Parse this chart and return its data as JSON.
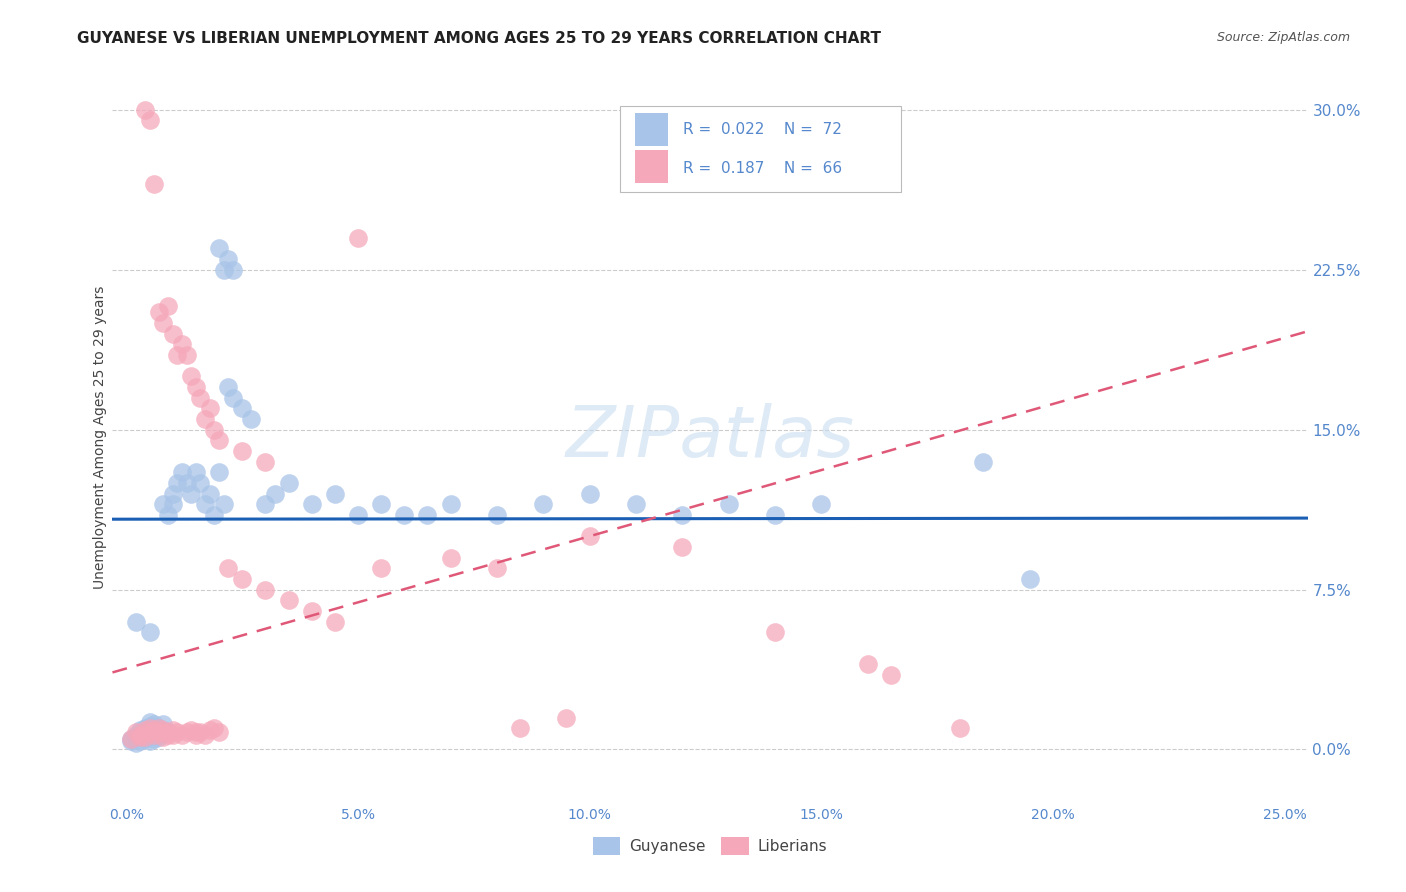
{
  "title": "GUYANESE VS LIBERIAN UNEMPLOYMENT AMONG AGES 25 TO 29 YEARS CORRELATION CHART",
  "source": "Source: ZipAtlas.com",
  "ylabel": "Unemployment Among Ages 25 to 29 years",
  "xlim": [
    -0.003,
    0.255
  ],
  "ylim": [
    -0.025,
    0.318
  ],
  "xtick_vals": [
    0.0,
    0.05,
    0.1,
    0.15,
    0.2,
    0.25
  ],
  "xtick_labels": [
    "0.0%",
    "5.0%",
    "10.0%",
    "15.0%",
    "20.0%",
    "25.0%"
  ],
  "ytick_vals": [
    0.0,
    0.075,
    0.15,
    0.225,
    0.3
  ],
  "ytick_labels": [
    "0.0%",
    "7.5%",
    "15.0%",
    "22.5%",
    "30.0%"
  ],
  "guyanese_color": "#a8c4e8",
  "liberian_color": "#f5a8ba",
  "guyanese_line_color": "#1a5fb4",
  "liberian_line_color": "#e05878",
  "tick_color": "#5588cc",
  "background_color": "#ffffff",
  "grid_color": "#cccccc",
  "watermark_color": "#c8ddf0",
  "guyanese_line_y_intercept": 0.108,
  "guyanese_line_slope": 0.002,
  "liberian_line_y_intercept": 0.038,
  "liberian_line_slope": 0.62,
  "guyanese_scatter": [
    [
      0.001,
      0.005
    ],
    [
      0.001,
      0.004
    ],
    [
      0.002,
      0.006
    ],
    [
      0.002,
      0.007
    ],
    [
      0.002,
      0.003
    ],
    [
      0.003,
      0.008
    ],
    [
      0.003,
      0.006
    ],
    [
      0.003,
      0.004
    ],
    [
      0.003,
      0.009
    ],
    [
      0.004,
      0.007
    ],
    [
      0.004,
      0.005
    ],
    [
      0.004,
      0.01
    ],
    [
      0.004,
      0.008
    ],
    [
      0.005,
      0.006
    ],
    [
      0.005,
      0.004
    ],
    [
      0.005,
      0.009
    ],
    [
      0.005,
      0.011
    ],
    [
      0.005,
      0.013
    ],
    [
      0.006,
      0.008
    ],
    [
      0.006,
      0.005
    ],
    [
      0.006,
      0.012
    ],
    [
      0.007,
      0.007
    ],
    [
      0.007,
      0.01
    ],
    [
      0.007,
      0.006
    ],
    [
      0.008,
      0.009
    ],
    [
      0.008,
      0.012
    ],
    [
      0.008,
      0.115
    ],
    [
      0.009,
      0.11
    ],
    [
      0.009,
      0.008
    ],
    [
      0.01,
      0.12
    ],
    [
      0.01,
      0.115
    ],
    [
      0.011,
      0.125
    ],
    [
      0.012,
      0.13
    ],
    [
      0.013,
      0.125
    ],
    [
      0.014,
      0.12
    ],
    [
      0.015,
      0.13
    ],
    [
      0.016,
      0.125
    ],
    [
      0.017,
      0.115
    ],
    [
      0.018,
      0.12
    ],
    [
      0.019,
      0.11
    ],
    [
      0.02,
      0.13
    ],
    [
      0.021,
      0.115
    ],
    [
      0.02,
      0.235
    ],
    [
      0.021,
      0.225
    ],
    [
      0.022,
      0.23
    ],
    [
      0.023,
      0.225
    ],
    [
      0.022,
      0.17
    ],
    [
      0.023,
      0.165
    ],
    [
      0.025,
      0.16
    ],
    [
      0.027,
      0.155
    ],
    [
      0.03,
      0.115
    ],
    [
      0.032,
      0.12
    ],
    [
      0.035,
      0.125
    ],
    [
      0.04,
      0.115
    ],
    [
      0.045,
      0.12
    ],
    [
      0.05,
      0.11
    ],
    [
      0.055,
      0.115
    ],
    [
      0.06,
      0.11
    ],
    [
      0.065,
      0.11
    ],
    [
      0.07,
      0.115
    ],
    [
      0.08,
      0.11
    ],
    [
      0.09,
      0.115
    ],
    [
      0.1,
      0.12
    ],
    [
      0.11,
      0.115
    ],
    [
      0.12,
      0.11
    ],
    [
      0.13,
      0.115
    ],
    [
      0.14,
      0.11
    ],
    [
      0.15,
      0.115
    ],
    [
      0.185,
      0.135
    ],
    [
      0.195,
      0.08
    ],
    [
      0.002,
      0.06
    ],
    [
      0.005,
      0.055
    ]
  ],
  "liberian_scatter": [
    [
      0.004,
      0.3
    ],
    [
      0.005,
      0.295
    ],
    [
      0.006,
      0.265
    ],
    [
      0.007,
      0.205
    ],
    [
      0.008,
      0.2
    ],
    [
      0.009,
      0.208
    ],
    [
      0.01,
      0.195
    ],
    [
      0.011,
      0.185
    ],
    [
      0.012,
      0.19
    ],
    [
      0.013,
      0.185
    ],
    [
      0.014,
      0.175
    ],
    [
      0.015,
      0.17
    ],
    [
      0.016,
      0.165
    ],
    [
      0.017,
      0.155
    ],
    [
      0.018,
      0.16
    ],
    [
      0.019,
      0.15
    ],
    [
      0.02,
      0.145
    ],
    [
      0.025,
      0.14
    ],
    [
      0.03,
      0.135
    ],
    [
      0.05,
      0.24
    ],
    [
      0.001,
      0.005
    ],
    [
      0.002,
      0.008
    ],
    [
      0.003,
      0.006
    ],
    [
      0.003,
      0.007
    ],
    [
      0.004,
      0.009
    ],
    [
      0.004,
      0.006
    ],
    [
      0.005,
      0.01
    ],
    [
      0.005,
      0.008
    ],
    [
      0.006,
      0.007
    ],
    [
      0.006,
      0.009
    ],
    [
      0.007,
      0.008
    ],
    [
      0.007,
      0.01
    ],
    [
      0.008,
      0.009
    ],
    [
      0.008,
      0.006
    ],
    [
      0.009,
      0.007
    ],
    [
      0.009,
      0.008
    ],
    [
      0.01,
      0.009
    ],
    [
      0.01,
      0.007
    ],
    [
      0.011,
      0.008
    ],
    [
      0.012,
      0.007
    ],
    [
      0.013,
      0.008
    ],
    [
      0.014,
      0.009
    ],
    [
      0.015,
      0.008
    ],
    [
      0.015,
      0.007
    ],
    [
      0.016,
      0.008
    ],
    [
      0.017,
      0.007
    ],
    [
      0.018,
      0.009
    ],
    [
      0.019,
      0.01
    ],
    [
      0.02,
      0.008
    ],
    [
      0.022,
      0.085
    ],
    [
      0.025,
      0.08
    ],
    [
      0.03,
      0.075
    ],
    [
      0.035,
      0.07
    ],
    [
      0.04,
      0.065
    ],
    [
      0.045,
      0.06
    ],
    [
      0.055,
      0.085
    ],
    [
      0.07,
      0.09
    ],
    [
      0.08,
      0.085
    ],
    [
      0.1,
      0.1
    ],
    [
      0.12,
      0.095
    ],
    [
      0.14,
      0.055
    ],
    [
      0.16,
      0.04
    ],
    [
      0.165,
      0.035
    ],
    [
      0.18,
      0.01
    ],
    [
      0.085,
      0.01
    ],
    [
      0.095,
      0.015
    ]
  ]
}
